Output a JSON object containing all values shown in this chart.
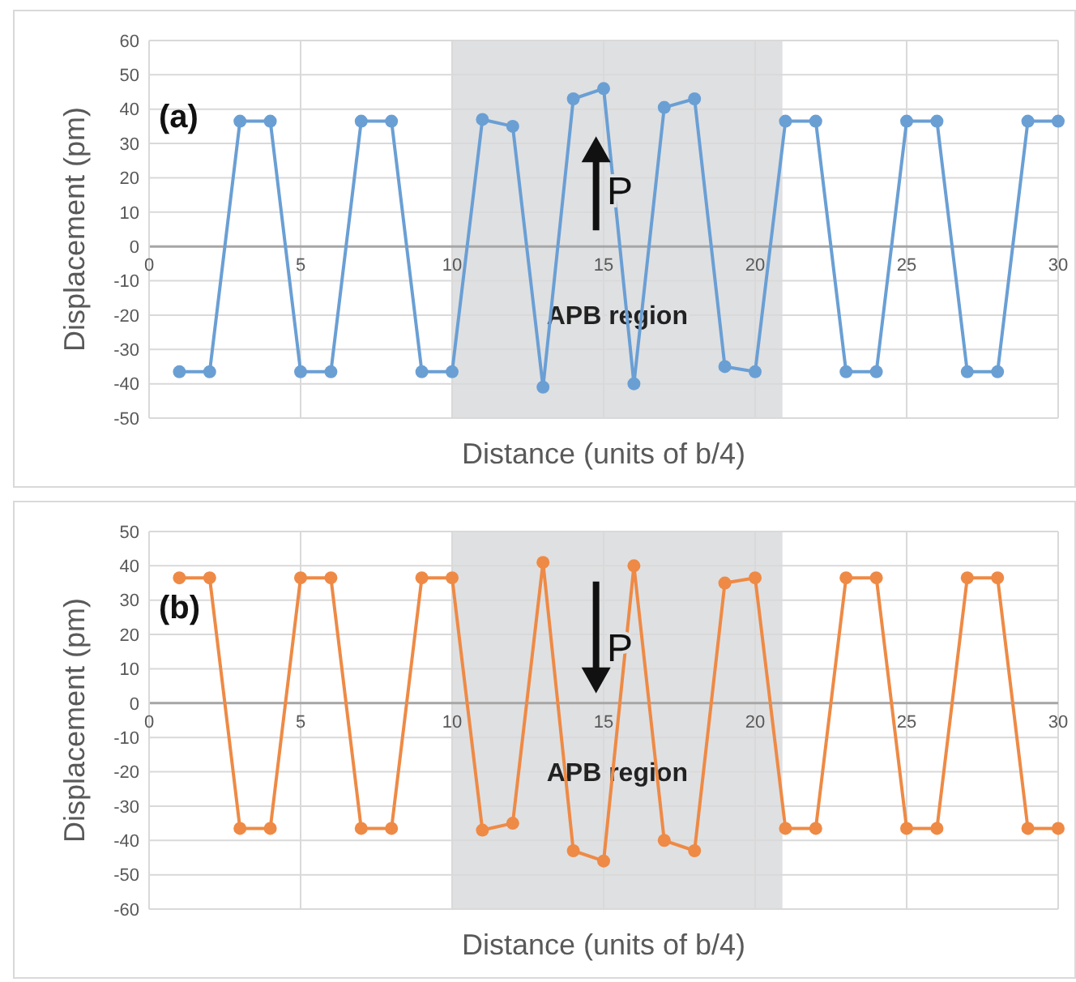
{
  "chart_data": [
    {
      "type": "line",
      "xlabel": "Distance (units of b/4)",
      "ylabel": "Displacement (pm)",
      "annotations": [
        "(a)",
        "P"
      ],
      "x": [
        1,
        2,
        3,
        4,
        5,
        6,
        7,
        8,
        9,
        10,
        11,
        12,
        13,
        14,
        15,
        16,
        17,
        18,
        19,
        20,
        21,
        22,
        23,
        24,
        25,
        26,
        27,
        28,
        29,
        30
      ],
      "series": [
        {
          "color": "#6a9fd4",
          "values": [
            -36.5,
            -36.5,
            36.5,
            36.5,
            -36.5,
            -36.5,
            36.5,
            36.5,
            -36.5,
            -36.5,
            37,
            35,
            -41,
            43,
            46,
            -40,
            40.5,
            43,
            -35,
            -36.5,
            36.5,
            36.5,
            -36.5,
            -36.5,
            36.5,
            36.5,
            -36.5,
            -36.5,
            36.5,
            36.5
          ]
        }
      ],
      "xlim": [
        0,
        30
      ],
      "xticks": [
        0,
        5,
        10,
        15,
        20,
        25,
        30
      ],
      "ylim": [
        -50,
        60
      ],
      "yticks": [
        -50,
        -40,
        -30,
        -20,
        -10,
        0,
        10,
        20,
        30,
        40,
        50,
        60
      ],
      "grid": true,
      "marker": "circle",
      "line_style": "solid",
      "bands": [
        {
          "axis": "x",
          "from": 10,
          "to": 20.9,
          "label": "APB region",
          "color": "#dfe0e2"
        }
      ]
    },
    {
      "type": "line",
      "xlabel": "Distance (units of b/4)",
      "ylabel": "Displacement (pm)",
      "annotations": [
        "(b)",
        "P"
      ],
      "x": [
        1,
        2,
        3,
        4,
        5,
        6,
        7,
        8,
        9,
        10,
        11,
        12,
        13,
        14,
        15,
        16,
        17,
        18,
        19,
        20,
        21,
        22,
        23,
        24,
        25,
        26,
        27,
        28,
        29,
        30
      ],
      "series": [
        {
          "color": "#ee8a45",
          "values": [
            36.5,
            36.5,
            -36.5,
            -36.5,
            36.5,
            36.5,
            -36.5,
            -36.5,
            36.5,
            36.5,
            -37,
            -35,
            41,
            -43,
            -46,
            40,
            -40,
            -43,
            35,
            36.5,
            -36.5,
            -36.5,
            36.5,
            36.5,
            -36.5,
            -36.5,
            36.5,
            36.5,
            -36.5,
            -36.5
          ]
        }
      ],
      "xlim": [
        0,
        30
      ],
      "xticks": [
        0,
        5,
        10,
        15,
        20,
        25,
        30
      ],
      "ylim": [
        -60,
        50
      ],
      "yticks": [
        -60,
        -50,
        -40,
        -30,
        -20,
        -10,
        0,
        10,
        20,
        30,
        40,
        50
      ],
      "grid": true,
      "marker": "circle",
      "line_style": "solid",
      "bands": [
        {
          "axis": "x",
          "from": 10,
          "to": 20.9,
          "label": "APB region",
          "color": "#dfe0e2"
        }
      ]
    }
  ]
}
